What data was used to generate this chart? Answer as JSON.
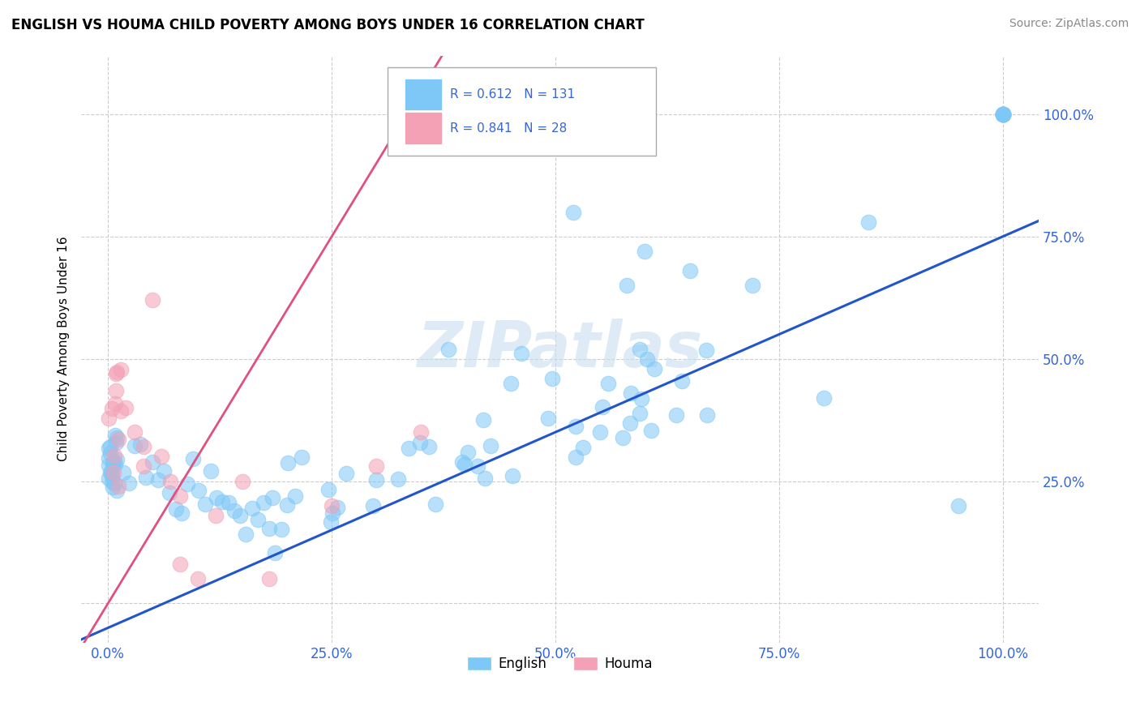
{
  "title": "ENGLISH VS HOUMA CHILD POVERTY AMONG BOYS UNDER 16 CORRELATION CHART",
  "source": "Source: ZipAtlas.com",
  "ylabel": "Child Poverty Among Boys Under 16",
  "watermark": "ZIPatlas",
  "english_R": 0.612,
  "english_N": 131,
  "houma_R": 0.841,
  "houma_N": 28,
  "english_color": "#7ec8f7",
  "houma_color": "#f4a0b5",
  "english_line_color": "#2255cc",
  "houma_line_color": "#e05080",
  "background_color": "#ffffff",
  "grid_color": "#cccccc",
  "legend_text_color": "#3366dd",
  "xlim": [
    -0.03,
    1.04
  ],
  "ylim": [
    -0.08,
    1.12
  ],
  "xticks": [
    0.0,
    0.25,
    0.5,
    0.75,
    1.0
  ],
  "yticks": [
    0.25,
    0.5,
    0.75,
    1.0
  ],
  "xticklabels": [
    "0.0%",
    "25.0%",
    "50.0%",
    "75.0%",
    "100.0%"
  ],
  "yticklabels": [
    "25.0%",
    "50.0%",
    "75.0%",
    "100.0%"
  ]
}
